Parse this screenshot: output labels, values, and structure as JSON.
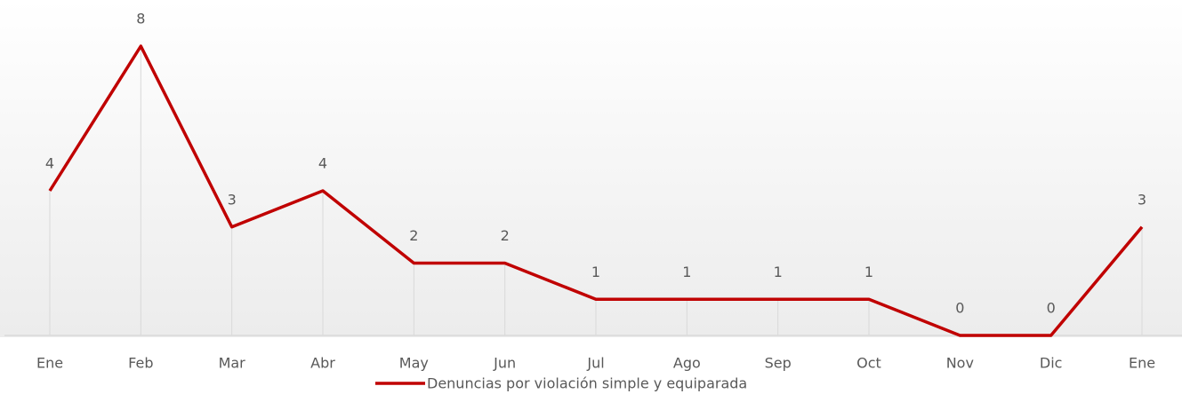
{
  "chart_data": {
    "type": "line",
    "categories": [
      "Ene",
      "Feb",
      "Mar",
      "Abr",
      "May",
      "Jun",
      "Jul",
      "Ago",
      "Sep",
      "Oct",
      "Nov",
      "Dic",
      "Ene"
    ],
    "series": [
      {
        "name": "Denuncias por violación simple y equiparada",
        "color": "#c00000",
        "values": [
          4,
          8,
          3,
          4,
          2,
          2,
          1,
          1,
          1,
          1,
          0,
          0,
          3
        ]
      }
    ],
    "ylim": [
      0,
      8
    ],
    "grid": false,
    "legend": "bottom"
  }
}
